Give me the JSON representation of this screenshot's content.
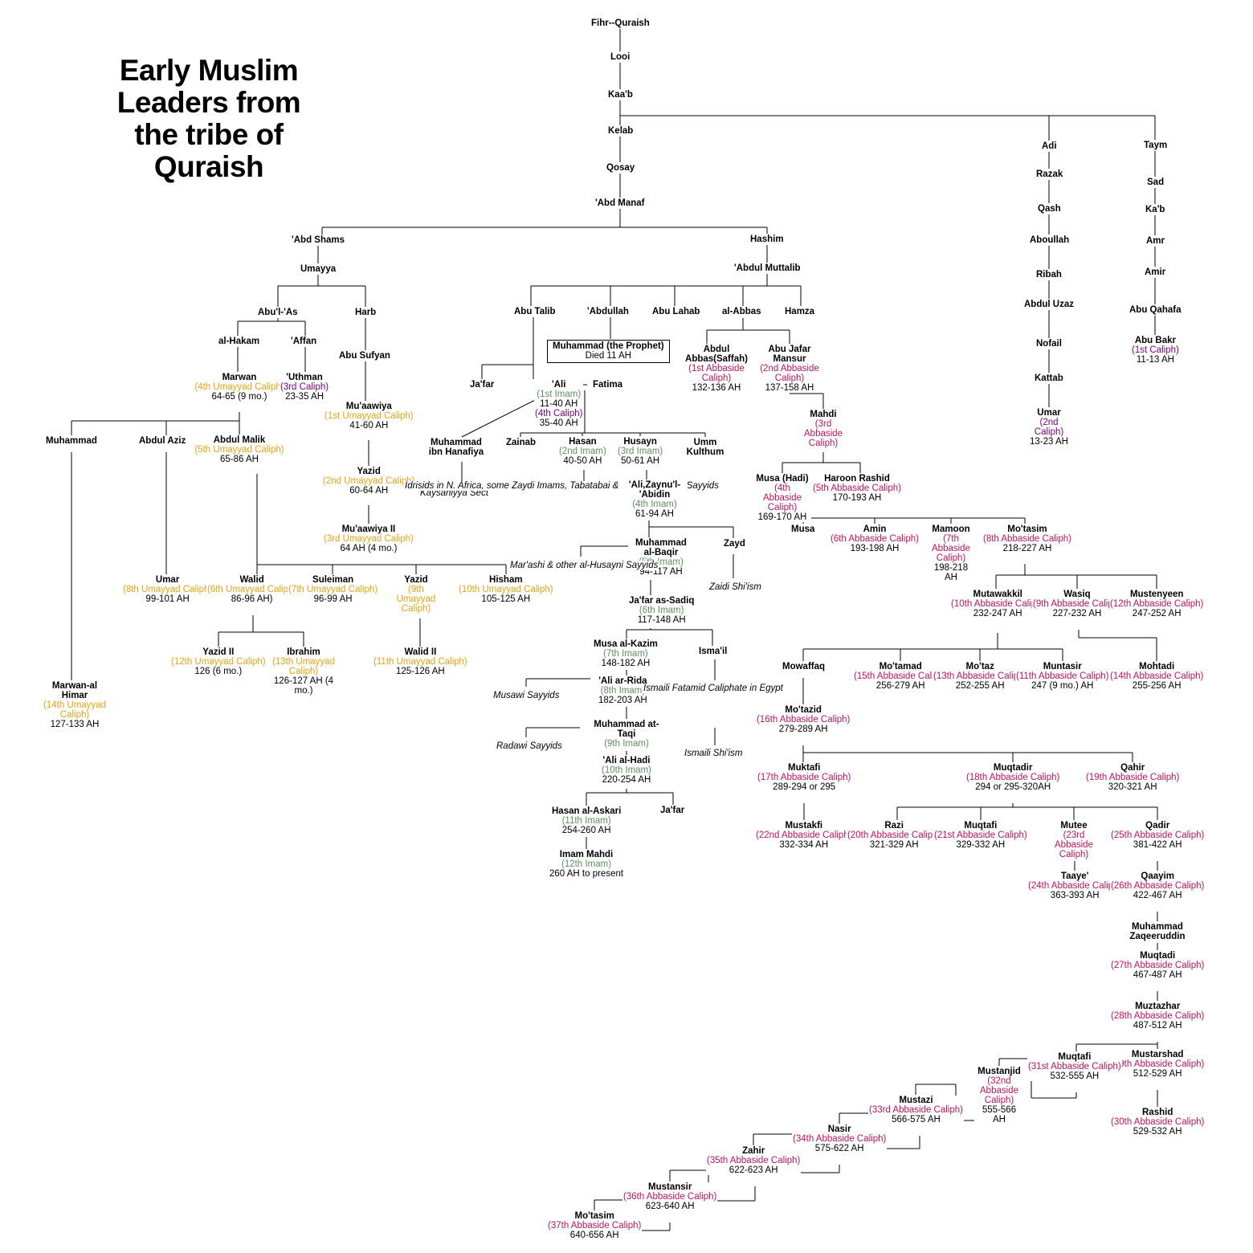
{
  "title": [
    "Early Muslim",
    "Leaders from",
    "the tribe of",
    "Quraish"
  ],
  "colors": {
    "umayyad": "#e8a317",
    "caliph": "#800080",
    "abbaside": "#c0135e",
    "imam": "#5f8f5f",
    "line": "#000000"
  },
  "nodes": [
    {
      "id": "fihr",
      "name": "Fihr--Quraish"
    },
    {
      "id": "looi",
      "name": "Looi"
    },
    {
      "id": "kaab",
      "name": "Kaa'b"
    },
    {
      "id": "kelab",
      "name": "Kelab"
    },
    {
      "id": "qosay",
      "name": "Qosay"
    },
    {
      "id": "abdmanaf",
      "name": "'Abd Manaf"
    },
    {
      "id": "abdshams",
      "name": "'Abd Shams"
    },
    {
      "id": "umayya",
      "name": "Umayya"
    },
    {
      "id": "abulas",
      "name": "Abu'l-'As"
    },
    {
      "id": "harb",
      "name": "Harb"
    },
    {
      "id": "alhakam",
      "name": "al-Hakam"
    },
    {
      "id": "affan",
      "name": "'Affan"
    },
    {
      "id": "abusufyan",
      "name": "Abu Sufyan"
    },
    {
      "id": "marwan",
      "name": "Marwan",
      "role": "(4th Umayyad Caliph)",
      "dates": "64-65 (9 mo.)",
      "k": "u"
    },
    {
      "id": "uthman",
      "name": "'Uthman",
      "role": "(3rd Caliph)",
      "dates": "23-35 AH",
      "k": "c"
    },
    {
      "id": "muawiya",
      "name": "Mu'aawiya",
      "role": "(1st Umayyad Caliph)",
      "dates": "41-60 AH",
      "k": "u"
    },
    {
      "id": "muhammad_u",
      "name": "Muhammad"
    },
    {
      "id": "abdulaziz",
      "name": "Abdul Aziz"
    },
    {
      "id": "abdulmalik",
      "name": "Abdul Malik",
      "role": "(5th Umayyad Caliph)",
      "dates": "65-86 AH",
      "k": "u"
    },
    {
      "id": "yazid1",
      "name": "Yazid",
      "role": "(2nd Umayyad Caliph)",
      "dates": "60-64 AH",
      "k": "u"
    },
    {
      "id": "muawiya2",
      "name": "Mu'aawiya II",
      "role": "(3rd Umayyad Caliph)",
      "dates": "64 AH (4 mo.)",
      "k": "u"
    },
    {
      "id": "umar_u",
      "name": "Umar",
      "role": "(8th Umayyad Caliph)",
      "dates": "99-101 AH",
      "k": "u"
    },
    {
      "id": "walid",
      "name": "Walid",
      "role": "(6th Umayyad Caliph)",
      "dates": "86-96 AH)",
      "k": "u"
    },
    {
      "id": "suleiman",
      "name": "Suleiman",
      "role": "(7th Umayyad Caliph)",
      "dates": "96-99 AH",
      "k": "u"
    },
    {
      "id": "yazid2x",
      "name": "Yazid",
      "role": "(9th Umayyad Caliph)",
      "k": "u"
    },
    {
      "id": "hisham",
      "name": "Hisham",
      "role": "(10th Umayyad Caliph)",
      "dates": "105-125 AH",
      "k": "u"
    },
    {
      "id": "yazid2",
      "name": "Yazid II",
      "role": "(12th Umayyad Caliph)",
      "dates": "126 (6 mo.)",
      "k": "u"
    },
    {
      "id": "ibrahim",
      "name": "Ibrahim",
      "role": "(13th Umayyad Caliph)",
      "dates": "126-127 AH (4 mo.)",
      "k": "u"
    },
    {
      "id": "walid2",
      "name": "Walid II",
      "role": "(11th Umayyad Caliph)",
      "dates": "125-126 AH",
      "k": "u"
    },
    {
      "id": "marwanhimar",
      "name": "Marwan-al Himar",
      "role": "(14th Umayyad Caliph)",
      "dates": "127-133 AH",
      "k": "u"
    },
    {
      "id": "hashim",
      "name": "Hashim"
    },
    {
      "id": "abdulmuttalib",
      "name": "'Abdul Muttalib"
    },
    {
      "id": "abutalib",
      "name": "Abu Talib"
    },
    {
      "id": "abdullah",
      "name": "'Abdullah"
    },
    {
      "id": "abulahab",
      "name": "Abu Lahab"
    },
    {
      "id": "alabbas",
      "name": "al-Abbas"
    },
    {
      "id": "hamza",
      "name": "Hamza"
    },
    {
      "id": "prophet",
      "name": "Muhammad (the Prophet)",
      "dates": "Died 11 AH"
    },
    {
      "id": "jafar_t",
      "name": "Ja'far"
    },
    {
      "id": "ali",
      "name": "'Ali",
      "role": "(1st Imam)",
      "dates": "11-40 AH",
      "role2": "(4th Caliph)",
      "dates2": "35-40 AH"
    },
    {
      "id": "fatima",
      "name": "Fatima"
    },
    {
      "id": "hanafiya",
      "name": "Muhammad ibn Hanafiya"
    },
    {
      "id": "kaysaniyya",
      "note": "Kaysaniyya Sect"
    },
    {
      "id": "zainab",
      "name": "Zainab"
    },
    {
      "id": "hasan",
      "name": "Hasan",
      "role": "(2nd Imam)",
      "dates": "40-50 AH",
      "k": "i"
    },
    {
      "id": "husayn",
      "name": "Husayn",
      "role": "(3rd Imam)",
      "dates": "50-61 AH",
      "k": "i"
    },
    {
      "id": "ummkulthum",
      "name": "Umm Kulthum"
    },
    {
      "id": "idrisids",
      "note": "Idrisids in N. Africa, some Zaydi Imams, Tabatabai & other al-Hasani Sayyids"
    },
    {
      "id": "zaynulabidin",
      "name": "'Ali,Zaynu'l-'Abidin",
      "role": "(4th Imam)",
      "dates": "61-94 AH",
      "k": "i"
    },
    {
      "id": "baqir",
      "name": "Muhammad al-Baqir",
      "role": "(5th Imam)",
      "dates": "94-117 AH",
      "k": "i"
    },
    {
      "id": "zayd",
      "name": "Zayd"
    },
    {
      "id": "marashi",
      "note": "Mar'ashi & other al-Husayni Sayyids"
    },
    {
      "id": "zaidi",
      "note": "Zaidi Shi'ism"
    },
    {
      "id": "sadiq",
      "name": "Ja'far as-Sadiq",
      "role": "(6th Imam)",
      "dates": "117-148 AH",
      "k": "i"
    },
    {
      "id": "kazim",
      "name": "Musa al-Kazim",
      "role": "(7th Imam)",
      "dates": "148-182 AH",
      "k": "i"
    },
    {
      "id": "ismail",
      "name": "Isma'il"
    },
    {
      "id": "rida",
      "name": "'Ali ar-Rida",
      "role": "(8th Imam)",
      "dates": "182-203 AH",
      "k": "i"
    },
    {
      "id": "musawi",
      "note": "Musawi Sayyids"
    },
    {
      "id": "fatamid",
      "note": "Ismaili Fatamid Caliphate in Egypt"
    },
    {
      "id": "taqi",
      "name": "Muhammad at-Taqi",
      "role": "(9th Imam)",
      "k": "i"
    },
    {
      "id": "radawi",
      "note": "Radawi Sayyids"
    },
    {
      "id": "ismailism",
      "note": "Ismaili Shi'ism"
    },
    {
      "id": "hadi",
      "name": "'Ali al-Hadi",
      "role": "(10th Imam)",
      "dates": "220-254 AH",
      "k": "i"
    },
    {
      "id": "askari",
      "name": "Hasan al-Askari",
      "role": "(11th Imam)",
      "dates": "254-260 AH",
      "k": "i"
    },
    {
      "id": "jafar_h",
      "name": "Ja'far"
    },
    {
      "id": "mahdi_i",
      "name": "Imam Mahdi",
      "role": "(12th Imam)",
      "dates": "260 AH to present",
      "k": "i"
    },
    {
      "id": "saffah",
      "name": "Abdul Abbas(Saffah)",
      "role": "(1st Abbaside Caliph)",
      "dates": "132-136 AH",
      "k": "a"
    },
    {
      "id": "mansur",
      "name": "Abu Jafar Mansur",
      "role": "(2nd Abbaside Caliph)",
      "dates": "137-158 AH",
      "k": "a"
    },
    {
      "id": "mahdi",
      "name": "Mahdi",
      "role": "(3rd Abbaside Caliph)",
      "k": "a"
    },
    {
      "id": "hadi_a",
      "name": "Musa (Hadi)",
      "role": "(4th Abbaside Caliph)",
      "dates": "169-170 AH",
      "k": "a"
    },
    {
      "id": "rashid_h",
      "name": "Haroon Rashid",
      "role": "(5th Abbaside Caliph)",
      "dates": "170-193 AH",
      "k": "a"
    },
    {
      "id": "musa_a",
      "name": "Musa"
    },
    {
      "id": "amin",
      "name": "Amin",
      "role": "(6th Abbaside Caliph)",
      "dates": "193-198 AH",
      "k": "a"
    },
    {
      "id": "mamoon",
      "name": "Mamoon",
      "role": "(7th Abbaside Caliph)",
      "dates": "198-218 AH",
      "k": "a"
    },
    {
      "id": "motasim",
      "name": "Mo'tasim",
      "role": "(8th Abbaside Caliph)",
      "dates": "218-227 AH",
      "k": "a"
    },
    {
      "id": "mutawakkil",
      "name": "Mutawakkil",
      "role": "(10th Abbaside Caliph)",
      "dates": "232-247 AH",
      "k": "a"
    },
    {
      "id": "wasiq",
      "name": "Wasiq",
      "role": "(9th Abbaside Caliph)",
      "dates": "227-232 AH",
      "k": "a"
    },
    {
      "id": "mustenyeen",
      "name": "Mustenyeen",
      "role": "(12th Abbaside Caliph)",
      "dates": "247-252 AH",
      "k": "a"
    },
    {
      "id": "mowaffaq",
      "name": "Mowaffaq"
    },
    {
      "id": "motamad",
      "name": "Mo'tamad",
      "role": "(15th Abbaside Caliph)",
      "dates": "256-279 AH",
      "k": "a"
    },
    {
      "id": "motaz",
      "name": "Mo'taz",
      "role": "(13th Abbaside Caliph)",
      "dates": "252-255 AH",
      "k": "a"
    },
    {
      "id": "muntasir",
      "name": "Muntasir",
      "role": "(11th Abbaside Caliph)",
      "dates": "247 (9 mo.) AH",
      "k": "a"
    },
    {
      "id": "mohtadi",
      "name": "Mohtadi",
      "role": "(14th Abbaside Caliph)",
      "dates": "255-256 AH",
      "k": "a"
    },
    {
      "id": "motazid",
      "name": "Mo'tazid",
      "role": "(16th Abbaside Caliph)",
      "dates": "279-289 AH",
      "k": "a"
    },
    {
      "id": "muktafi",
      "name": "Muktafi",
      "role": "(17th Abbaside Caliph)",
      "dates": "289-294 or 295",
      "k": "a"
    },
    {
      "id": "muqtadir",
      "name": "Muqtadir",
      "role": "(18th Abbaside Caliph)",
      "dates": "294 or 295-320AH",
      "k": "a"
    },
    {
      "id": "qahir",
      "name": "Qahir",
      "role": "(19th Abbaside Caliph)",
      "dates": "320-321 AH",
      "k": "a"
    },
    {
      "id": "mustakfi",
      "name": "Mustakfi",
      "role": "(22nd Abbaside Caliph)",
      "dates": "332-334 AH",
      "k": "a"
    },
    {
      "id": "razi",
      "name": "Razi",
      "role": "(20th Abbaside Caliph)",
      "dates": "321-329 AH",
      "k": "a"
    },
    {
      "id": "muqtafi1",
      "name": "Muqtafi",
      "role": "(21st Abbaside Caliph)",
      "dates": "329-332 AH",
      "k": "a"
    },
    {
      "id": "mutee",
      "name": "Mutee",
      "role": "(23rd Abbaside Caliph)",
      "k": "a"
    },
    {
      "id": "qadir",
      "name": "Qadir",
      "role": "(25th Abbaside Caliph)",
      "dates": "381-422 AH",
      "k": "a"
    },
    {
      "id": "taaye",
      "name": "Taaye'",
      "role": "(24th Abbaside Caliph)",
      "dates": "363-393 AH",
      "k": "a"
    },
    {
      "id": "qaayim",
      "name": "Qaayim",
      "role": "(26th Abbaside Caliph)",
      "dates": "422-467 AH",
      "k": "a"
    },
    {
      "id": "zaqeer",
      "name": "Muhammad Zaqeeruddin"
    },
    {
      "id": "muqtadi",
      "name": "Muqtadi",
      "role": "(27th Abbaside Caliph)",
      "dates": "467-487 AH",
      "k": "a"
    },
    {
      "id": "muztazhar",
      "name": "Muztazhar",
      "role": "(28th Abbaside Caliph)",
      "dates": "487-512 AH",
      "k": "a"
    },
    {
      "id": "mustarshad",
      "name": "Mustarshad",
      "role": "(29th Abbaside Caliph)",
      "dates": "512-529 AH",
      "k": "a"
    },
    {
      "id": "rashid",
      "name": "Rashid",
      "role": "(30th Abbaside Caliph)",
      "dates": "529-532 AH",
      "k": "a"
    },
    {
      "id": "muqtafi2",
      "name": "Muqtafi",
      "role": "(31st Abbaside Caliph)",
      "dates": "532-555 AH",
      "k": "a"
    },
    {
      "id": "mustanjid",
      "name": "Mustanjid",
      "role": "(32nd Abbaside Caliph)",
      "dates": "555-566 AH",
      "k": "a"
    },
    {
      "id": "mustazi",
      "name": "Mustazi",
      "role": "(33rd Abbaside Caliph)",
      "dates": "566-575 AH",
      "k": "a"
    },
    {
      "id": "nasir",
      "name": "Nasir",
      "role": "(34th Abbaside Caliph)",
      "dates": "575-622 AH",
      "k": "a"
    },
    {
      "id": "zahir",
      "name": "Zahir",
      "role": "(35th Abbaside Caliph)",
      "dates": "622-623 AH",
      "k": "a"
    },
    {
      "id": "mustansir",
      "name": "Mustansir",
      "role": "(36th Abbaside Caliph)",
      "dates": "623-640 AH",
      "k": "a"
    },
    {
      "id": "motasim2",
      "name": "Mo'tasim",
      "role": "(37th Abbaside Caliph)",
      "dates": "640-656 AH",
      "k": "a"
    },
    {
      "id": "adi",
      "name": "Adi"
    },
    {
      "id": "razak",
      "name": "Razak"
    },
    {
      "id": "qash",
      "name": "Qash"
    },
    {
      "id": "aboullah",
      "name": "Aboullah"
    },
    {
      "id": "ribah",
      "name": "Ribah"
    },
    {
      "id": "abduluzaz",
      "name": "Abdul Uzaz"
    },
    {
      "id": "nofail",
      "name": "Nofail"
    },
    {
      "id": "kattab",
      "name": "Kattab"
    },
    {
      "id": "umar_2",
      "name": "Umar",
      "role": "(2nd Caliph)",
      "dates": "13-23 AH",
      "k": "c"
    },
    {
      "id": "taym",
      "name": "Taym"
    },
    {
      "id": "sad",
      "name": "Sad"
    },
    {
      "id": "kaab2",
      "name": "Ka'b"
    },
    {
      "id": "amr",
      "name": "Amr"
    },
    {
      "id": "amir",
      "name": "Amir"
    },
    {
      "id": "abuqahafa",
      "name": "Abu Qahafa"
    },
    {
      "id": "abubakr",
      "name": "Abu Bakr",
      "role": "(1st Caliph)",
      "dates": "11-13 AH",
      "k": "c"
    }
  ]
}
